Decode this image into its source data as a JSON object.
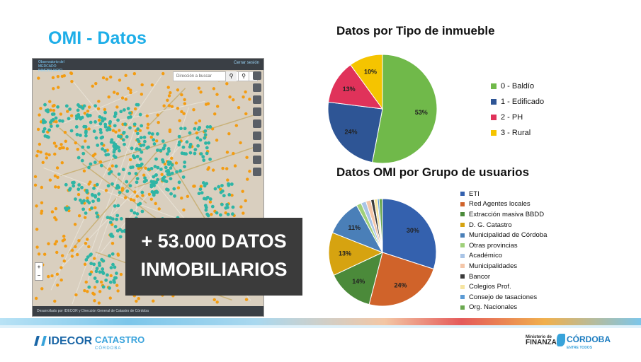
{
  "slide": {
    "title": "OMI - Datos",
    "highlight_line1": "+ 53.000 DATOS",
    "highlight_line2": "INMOBILIARIOS"
  },
  "map": {
    "logo_text": "Observatorio del MERCADO INMOBILIARIO",
    "logout_label": "Cerrar sesión",
    "search_placeholder": "Dirección a buscar",
    "search_icon": "search-icon",
    "location_icon": "location-pin-icon",
    "zoom_in": "+",
    "zoom_out": "−",
    "footer_text": "Desarrollado por IDECOR y Dirección General de Catastro de Córdoba",
    "marker_colors": {
      "teal": "#2fb5a5",
      "orange": "#f39c12"
    }
  },
  "chart_data": [
    {
      "type": "pie",
      "title": "Datos por Tipo de inmueble",
      "categories": [
        "0 - Baldío",
        "1 - Edificado",
        "2 - PH",
        "3 - Rural"
      ],
      "values": [
        53,
        24,
        13,
        10
      ],
      "labels": [
        "53%",
        "24%",
        "13%",
        "10%"
      ],
      "colors": [
        "#70b94a",
        "#2e5595",
        "#e0325a",
        "#f5c400"
      ],
      "legend_position": "right"
    },
    {
      "type": "pie",
      "title": "Datos OMI por Grupo de usuarios",
      "categories": [
        "ETI",
        "Red Agentes locales",
        "Extracción masiva BBDD",
        "D. G. Catastro",
        "Municipalidad de Córdoba",
        "Otras provincias",
        "Académico",
        "Municipalidades",
        "Bancor",
        "Colegios Prof.",
        "Consejo de tasaciones",
        "Org. Nacionales"
      ],
      "values": [
        30,
        24,
        14,
        13,
        11,
        1.5,
        1.5,
        1.5,
        1,
        1,
        0.5,
        1
      ],
      "labels": [
        "30%",
        "24%",
        "14%",
        "13%",
        "11%",
        "",
        "",
        "",
        "",
        "",
        "",
        ""
      ],
      "colors": [
        "#3461ae",
        "#d0632a",
        "#4b8a3a",
        "#d6a310",
        "#4a7fb8",
        "#9fd07a",
        "#a9c4e6",
        "#f4c6a8",
        "#3b3b3b",
        "#f6e4a0",
        "#5b9bd5",
        "#6aa84f"
      ],
      "legend_position": "right"
    }
  ],
  "footer": {
    "idecor": "IDECOR",
    "catastro": "CATASTRO",
    "catastro_sub": "CÓRDOBA",
    "ministerio_line": "Ministerio de",
    "ministerio_name": "FINANZAS",
    "cordoba": "CÓRDOBA",
    "cordoba_sub": "ENTRE TODOS"
  }
}
